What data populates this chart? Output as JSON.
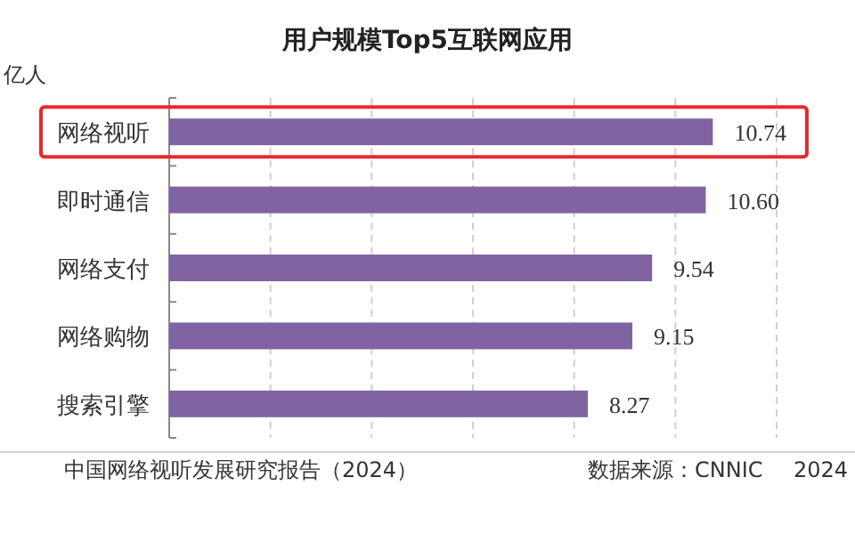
{
  "chart_data": {
    "type": "bar",
    "orientation": "horizontal",
    "title": "用户规模Top5互联网应用",
    "ylabel": "亿人",
    "categories": [
      "网络视听",
      "即时通信",
      "网络支付",
      "网络购物",
      "搜索引擎"
    ],
    "values": [
      10.74,
      10.6,
      9.54,
      9.15,
      8.27
    ],
    "color": "#8064a2",
    "value_labels": [
      "10.74",
      "10.60",
      "9.54",
      "9.15",
      "8.27"
    ],
    "xlim": [
      0,
      12
    ],
    "xticks": [
      {
        "value": 2,
        "label": null
      },
      {
        "value": 4,
        "label": null
      },
      {
        "value": 6,
        "label": null
      },
      {
        "value": 8,
        "label": null
      },
      {
        "value": 10,
        "label": null
      },
      {
        "value": 12,
        "label": null
      }
    ],
    "grid": "x",
    "tick_labels": "y",
    "annotations": [
      "中国网络视听发展研究报告（2024）",
      "数据来源：CNNIC",
      "2024"
    ]
  }
}
